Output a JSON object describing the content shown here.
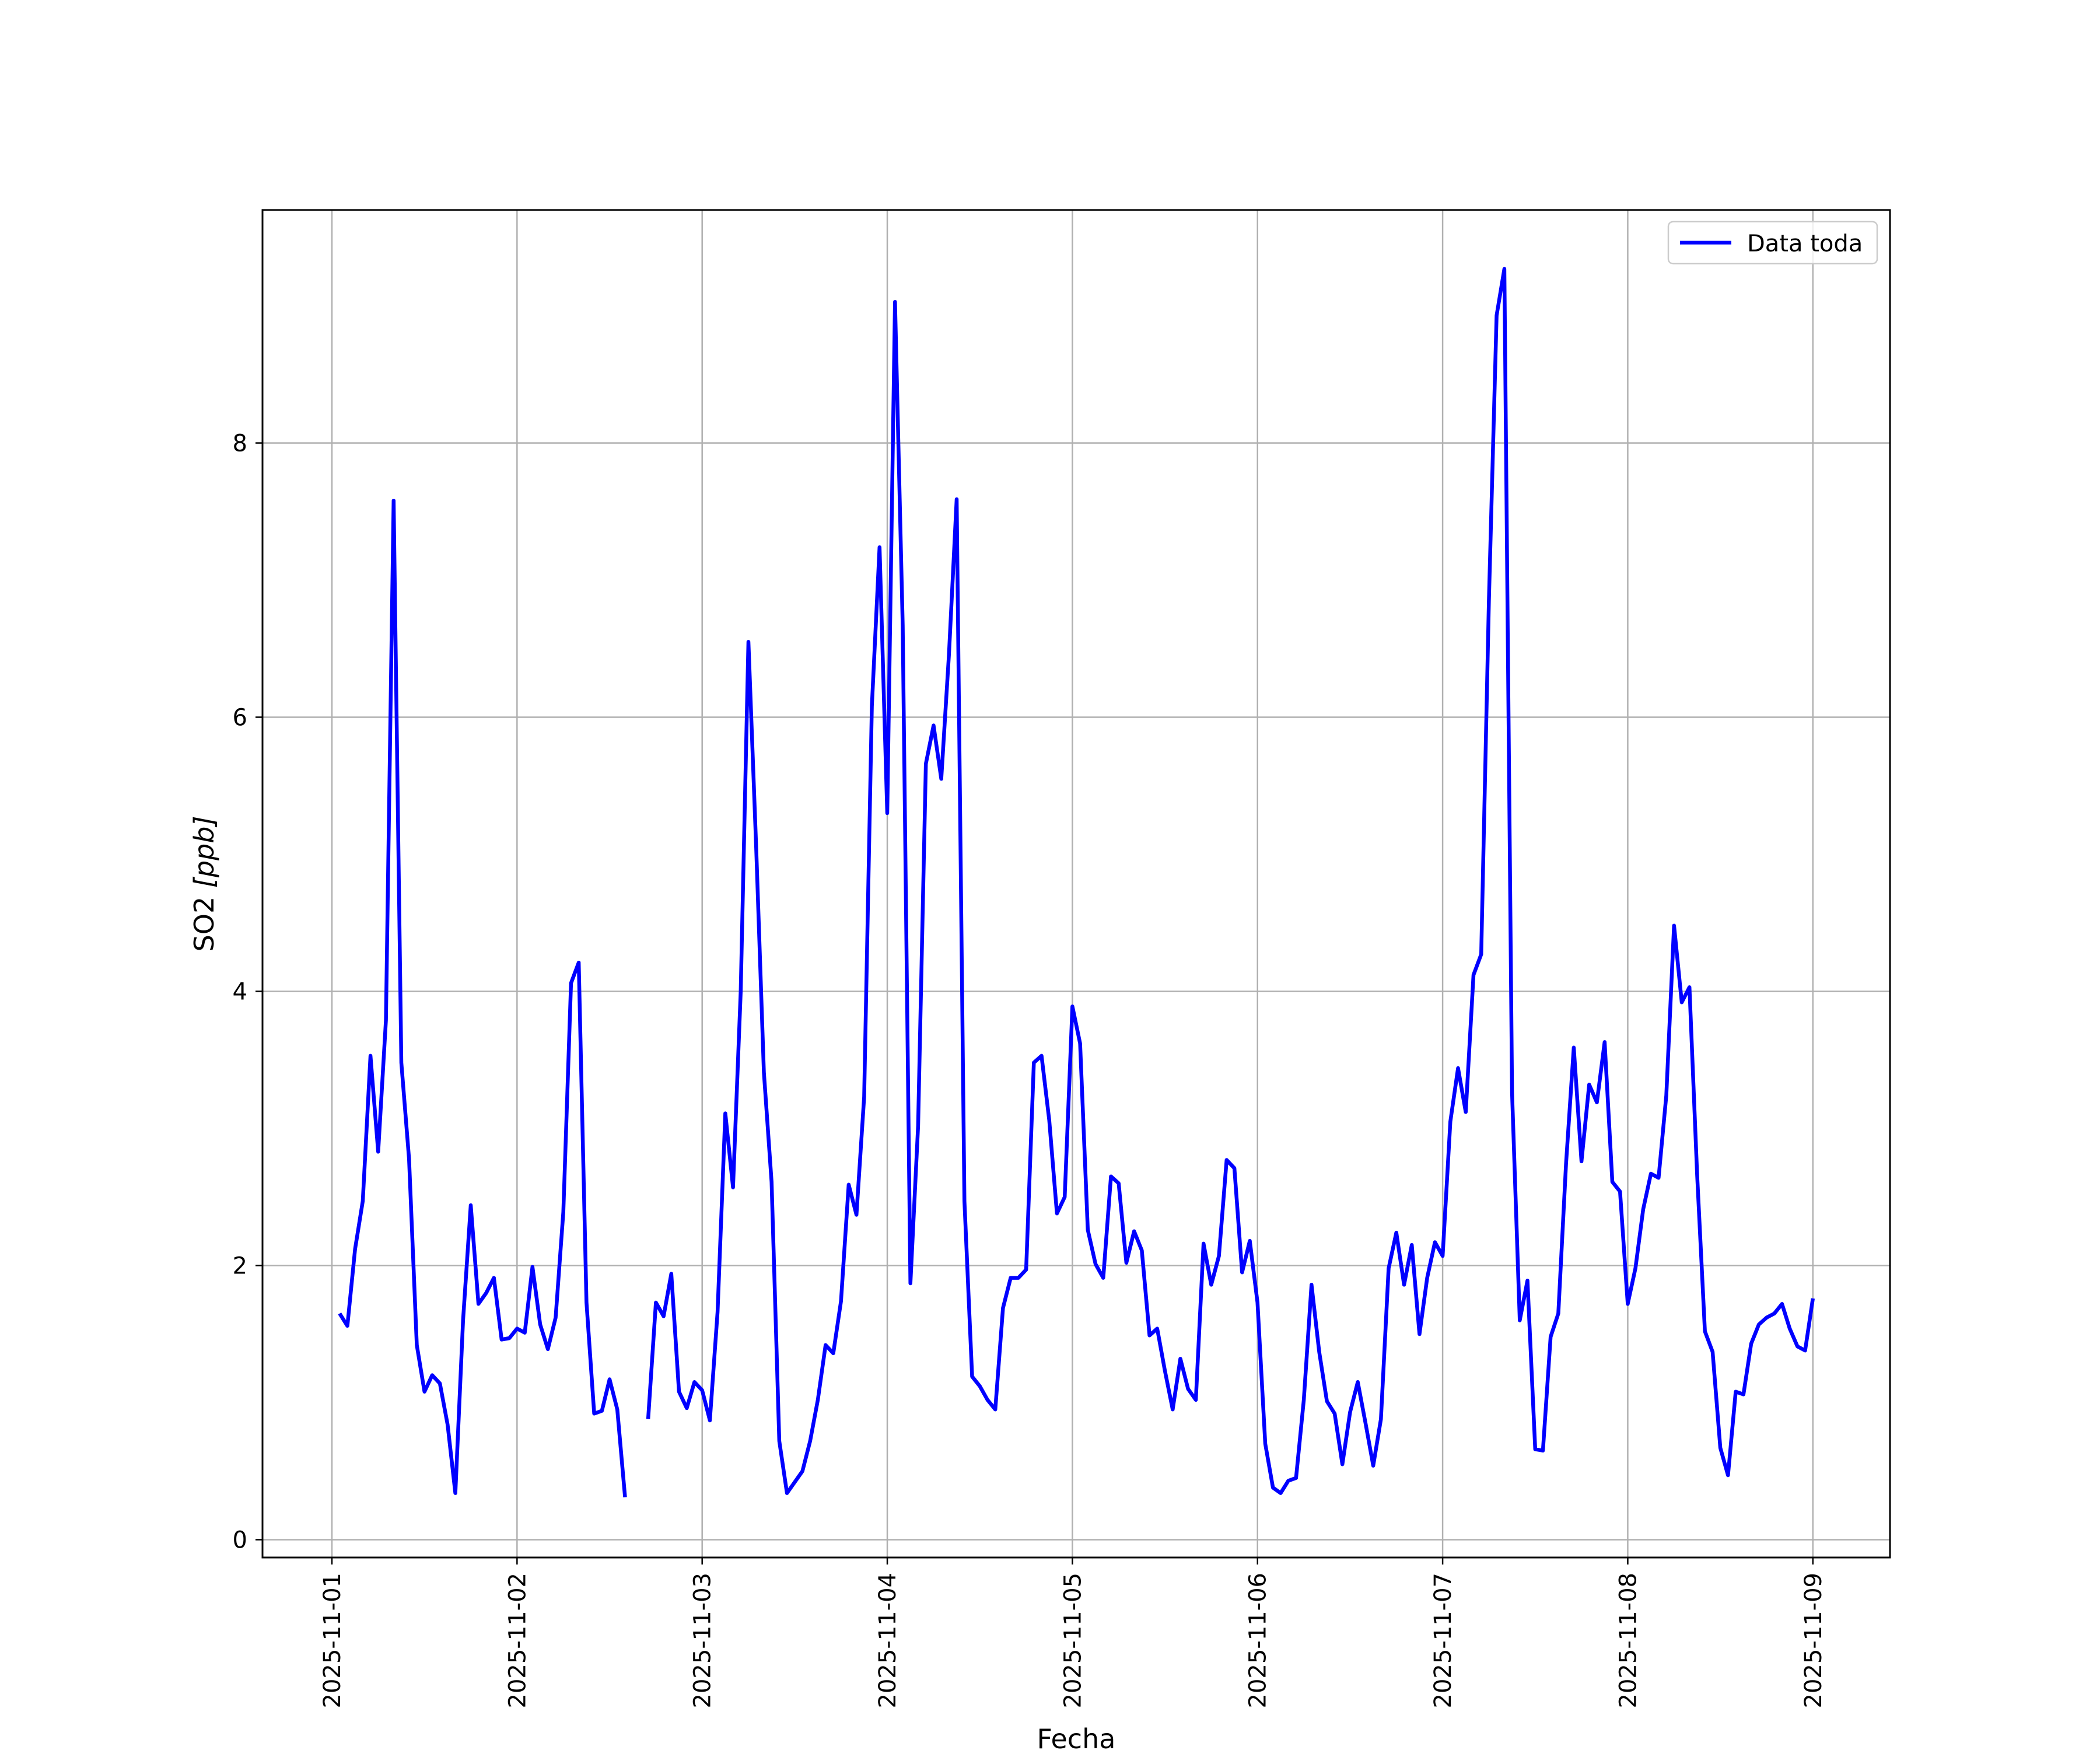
{
  "chart_data": {
    "type": "line",
    "xlabel": "Fecha",
    "ylabel_text": "SO2 ",
    "ylabel_unit": "[ppb]",
    "ylim": [
      -0.13,
      9.7
    ],
    "xlim": [
      "2025-10-31T15:00",
      "2025-11-09T10:00"
    ],
    "grid": true,
    "legend_position": "top-right",
    "x_ticks": [
      "2025-11-01",
      "2025-11-02",
      "2025-11-03",
      "2025-11-04",
      "2025-11-05",
      "2025-11-06",
      "2025-11-07",
      "2025-11-08",
      "2025-11-09"
    ],
    "y_ticks": [
      0,
      2,
      4,
      6,
      8
    ],
    "series": [
      {
        "name": "Data toda",
        "color": "#0000ff",
        "points": [
          [
            "2025-11-01T01:00",
            1.65
          ],
          [
            "2025-11-01T02:00",
            1.56
          ],
          [
            "2025-11-01T03:00",
            2.12
          ],
          [
            "2025-11-01T04:00",
            2.47
          ],
          [
            "2025-11-01T05:00",
            3.53
          ],
          [
            "2025-11-01T06:00",
            2.83
          ],
          [
            "2025-11-01T07:00",
            3.79
          ],
          [
            "2025-11-01T08:00",
            7.58
          ],
          [
            "2025-11-01T09:00",
            3.48
          ],
          [
            "2025-11-01T10:00",
            2.78
          ],
          [
            "2025-11-01T11:00",
            1.42
          ],
          [
            "2025-11-01T12:00",
            1.08
          ],
          [
            "2025-11-01T13:00",
            1.2
          ],
          [
            "2025-11-01T14:00",
            1.14
          ],
          [
            "2025-11-01T15:00",
            0.84
          ],
          [
            "2025-11-01T16:00",
            0.34
          ],
          [
            "2025-11-01T17:00",
            1.6
          ],
          [
            "2025-11-01T18:00",
            2.44
          ],
          [
            "2025-11-01T19:00",
            1.72
          ],
          [
            "2025-11-01T20:00",
            1.8
          ],
          [
            "2025-11-01T21:00",
            1.91
          ],
          [
            "2025-11-01T22:00",
            1.46
          ],
          [
            "2025-11-01T23:00",
            1.47
          ],
          [
            "2025-11-02T00:00",
            1.54
          ],
          [
            "2025-11-02T01:00",
            1.51
          ],
          [
            "2025-11-02T02:00",
            1.99
          ],
          [
            "2025-11-02T03:00",
            1.57
          ],
          [
            "2025-11-02T04:00",
            1.39
          ],
          [
            "2025-11-02T05:00",
            1.62
          ],
          [
            "2025-11-02T06:00",
            2.39
          ],
          [
            "2025-11-02T07:00",
            4.06
          ],
          [
            "2025-11-02T08:00",
            4.21
          ],
          [
            "2025-11-02T09:00",
            1.73
          ],
          [
            "2025-11-02T10:00",
            0.92
          ],
          [
            "2025-11-02T11:00",
            0.94
          ],
          [
            "2025-11-02T12:00",
            1.17
          ],
          [
            "2025-11-02T13:00",
            0.95
          ],
          [
            "2025-11-02T14:00",
            0.31
          ],
          [
            "2025-11-02T15:00",
            null
          ],
          [
            "2025-11-02T16:00",
            null
          ],
          [
            "2025-11-02T17:00",
            0.88
          ],
          [
            "2025-11-02T18:00",
            1.73
          ],
          [
            "2025-11-02T19:00",
            1.63
          ],
          [
            "2025-11-02T20:00",
            1.94
          ],
          [
            "2025-11-02T21:00",
            1.08
          ],
          [
            "2025-11-02T22:00",
            0.96
          ],
          [
            "2025-11-02T23:00",
            1.15
          ],
          [
            "2025-11-03T00:00",
            1.09
          ],
          [
            "2025-11-03T01:00",
            0.87
          ],
          [
            "2025-11-03T02:00",
            1.66
          ],
          [
            "2025-11-03T03:00",
            3.11
          ],
          [
            "2025-11-03T04:00",
            2.57
          ],
          [
            "2025-11-03T05:00",
            4.0
          ],
          [
            "2025-11-03T06:00",
            6.55
          ],
          [
            "2025-11-03T07:00",
            5.05
          ],
          [
            "2025-11-03T08:00",
            3.41
          ],
          [
            "2025-11-03T09:00",
            2.61
          ],
          [
            "2025-11-03T10:00",
            0.72
          ],
          [
            "2025-11-03T11:00",
            0.34
          ],
          [
            "2025-11-03T12:00",
            0.42
          ],
          [
            "2025-11-03T13:00",
            0.5
          ],
          [
            "2025-11-03T14:00",
            0.72
          ],
          [
            "2025-11-03T15:00",
            1.02
          ],
          [
            "2025-11-03T16:00",
            1.42
          ],
          [
            "2025-11-03T17:00",
            1.36
          ],
          [
            "2025-11-03T18:00",
            1.74
          ],
          [
            "2025-11-03T19:00",
            2.59
          ],
          [
            "2025-11-03T20:00",
            2.37
          ],
          [
            "2025-11-03T21:00",
            3.23
          ],
          [
            "2025-11-03T22:00",
            6.08
          ],
          [
            "2025-11-03T23:00",
            7.24
          ],
          [
            "2025-11-04T00:00",
            5.3
          ],
          [
            "2025-11-04T01:00",
            9.03
          ],
          [
            "2025-11-04T02:00",
            6.67
          ],
          [
            "2025-11-04T03:00",
            1.87
          ],
          [
            "2025-11-04T04:00",
            3.02
          ],
          [
            "2025-11-04T05:00",
            5.66
          ],
          [
            "2025-11-04T06:00",
            5.94
          ],
          [
            "2025-11-04T07:00",
            5.55
          ],
          [
            "2025-11-04T08:00",
            6.46
          ],
          [
            "2025-11-04T09:00",
            7.59
          ],
          [
            "2025-11-04T10:00",
            2.47
          ],
          [
            "2025-11-04T11:00",
            1.19
          ],
          [
            "2025-11-04T12:00",
            1.12
          ],
          [
            "2025-11-04T13:00",
            1.02
          ],
          [
            "2025-11-04T14:00",
            0.95
          ],
          [
            "2025-11-04T15:00",
            1.69
          ],
          [
            "2025-11-04T16:00",
            1.91
          ],
          [
            "2025-11-04T17:00",
            1.91
          ],
          [
            "2025-11-04T18:00",
            1.97
          ],
          [
            "2025-11-04T19:00",
            3.48
          ],
          [
            "2025-11-04T20:00",
            3.53
          ],
          [
            "2025-11-04T21:00",
            3.06
          ],
          [
            "2025-11-04T22:00",
            2.38
          ],
          [
            "2025-11-04T23:00",
            2.5
          ],
          [
            "2025-11-05T00:00",
            3.89
          ],
          [
            "2025-11-05T01:00",
            3.62
          ],
          [
            "2025-11-05T02:00",
            2.26
          ],
          [
            "2025-11-05T03:00",
            2.01
          ],
          [
            "2025-11-05T04:00",
            1.91
          ],
          [
            "2025-11-05T05:00",
            2.65
          ],
          [
            "2025-11-05T06:00",
            2.6
          ],
          [
            "2025-11-05T07:00",
            2.02
          ],
          [
            "2025-11-05T08:00",
            2.25
          ],
          [
            "2025-11-05T09:00",
            2.11
          ],
          [
            "2025-11-05T10:00",
            1.49
          ],
          [
            "2025-11-05T11:00",
            1.54
          ],
          [
            "2025-11-05T12:00",
            1.23
          ],
          [
            "2025-11-05T13:00",
            0.95
          ],
          [
            "2025-11-05T14:00",
            1.32
          ],
          [
            "2025-11-05T15:00",
            1.1
          ],
          [
            "2025-11-05T16:00",
            1.02
          ],
          [
            "2025-11-05T17:00",
            2.16
          ],
          [
            "2025-11-05T18:00",
            1.86
          ],
          [
            "2025-11-05T19:00",
            2.07
          ],
          [
            "2025-11-05T20:00",
            2.77
          ],
          [
            "2025-11-05T21:00",
            2.71
          ],
          [
            "2025-11-05T22:00",
            1.95
          ],
          [
            "2025-11-05T23:00",
            2.18
          ],
          [
            "2025-11-06T00:00",
            1.73
          ],
          [
            "2025-11-06T01:00",
            0.7
          ],
          [
            "2025-11-06T02:00",
            0.38
          ],
          [
            "2025-11-06T03:00",
            0.34
          ],
          [
            "2025-11-06T04:00",
            0.43
          ],
          [
            "2025-11-06T05:00",
            0.45
          ],
          [
            "2025-11-06T06:00",
            1.02
          ],
          [
            "2025-11-06T07:00",
            1.86
          ],
          [
            "2025-11-06T08:00",
            1.37
          ],
          [
            "2025-11-06T09:00",
            1.01
          ],
          [
            "2025-11-06T10:00",
            0.92
          ],
          [
            "2025-11-06T11:00",
            0.55
          ],
          [
            "2025-11-06T12:00",
            0.93
          ],
          [
            "2025-11-06T13:00",
            1.15
          ],
          [
            "2025-11-06T14:00",
            0.85
          ],
          [
            "2025-11-06T15:00",
            0.54
          ],
          [
            "2025-11-06T16:00",
            0.88
          ],
          [
            "2025-11-06T17:00",
            1.98
          ],
          [
            "2025-11-06T18:00",
            2.24
          ],
          [
            "2025-11-06T19:00",
            1.86
          ],
          [
            "2025-11-06T20:00",
            2.15
          ],
          [
            "2025-11-06T21:00",
            1.5
          ],
          [
            "2025-11-06T22:00",
            1.91
          ],
          [
            "2025-11-06T23:00",
            2.17
          ],
          [
            "2025-11-07T00:00",
            2.07
          ],
          [
            "2025-11-07T01:00",
            3.05
          ],
          [
            "2025-11-07T02:00",
            3.44
          ],
          [
            "2025-11-07T03:00",
            3.12
          ],
          [
            "2025-11-07T04:00",
            4.12
          ],
          [
            "2025-11-07T05:00",
            4.27
          ],
          [
            "2025-11-07T06:00",
            6.85
          ],
          [
            "2025-11-07T07:00",
            8.93
          ],
          [
            "2025-11-07T08:00",
            9.27
          ],
          [
            "2025-11-07T09:00",
            3.26
          ],
          [
            "2025-11-07T10:00",
            1.6
          ],
          [
            "2025-11-07T11:00",
            1.89
          ],
          [
            "2025-11-07T12:00",
            0.66
          ],
          [
            "2025-11-07T13:00",
            0.65
          ],
          [
            "2025-11-07T14:00",
            1.48
          ],
          [
            "2025-11-07T15:00",
            1.65
          ],
          [
            "2025-11-07T16:00",
            2.74
          ],
          [
            "2025-11-07T17:00",
            3.59
          ],
          [
            "2025-11-07T18:00",
            2.76
          ],
          [
            "2025-11-07T19:00",
            3.32
          ],
          [
            "2025-11-07T20:00",
            3.19
          ],
          [
            "2025-11-07T21:00",
            3.63
          ],
          [
            "2025-11-07T22:00",
            2.61
          ],
          [
            "2025-11-07T23:00",
            2.54
          ],
          [
            "2025-11-08T00:00",
            1.72
          ],
          [
            "2025-11-08T01:00",
            1.98
          ],
          [
            "2025-11-08T02:00",
            2.41
          ],
          [
            "2025-11-08T03:00",
            2.67
          ],
          [
            "2025-11-08T04:00",
            2.64
          ],
          [
            "2025-11-08T05:00",
            3.24
          ],
          [
            "2025-11-08T06:00",
            4.48
          ],
          [
            "2025-11-08T07:00",
            3.92
          ],
          [
            "2025-11-08T08:00",
            4.03
          ],
          [
            "2025-11-08T09:00",
            2.66
          ],
          [
            "2025-11-08T10:00",
            1.52
          ],
          [
            "2025-11-08T11:00",
            1.37
          ],
          [
            "2025-11-08T12:00",
            0.67
          ],
          [
            "2025-11-08T13:00",
            0.47
          ],
          [
            "2025-11-08T14:00",
            1.08
          ],
          [
            "2025-11-08T15:00",
            1.06
          ],
          [
            "2025-11-08T16:00",
            1.43
          ],
          [
            "2025-11-08T17:00",
            1.57
          ],
          [
            "2025-11-08T18:00",
            1.62
          ],
          [
            "2025-11-08T19:00",
            1.65
          ],
          [
            "2025-11-08T20:00",
            1.72
          ],
          [
            "2025-11-08T21:00",
            1.54
          ],
          [
            "2025-11-08T22:00",
            1.41
          ],
          [
            "2025-11-08T23:00",
            1.38
          ],
          [
            "2025-11-09T00:00",
            1.76
          ]
        ]
      }
    ]
  }
}
